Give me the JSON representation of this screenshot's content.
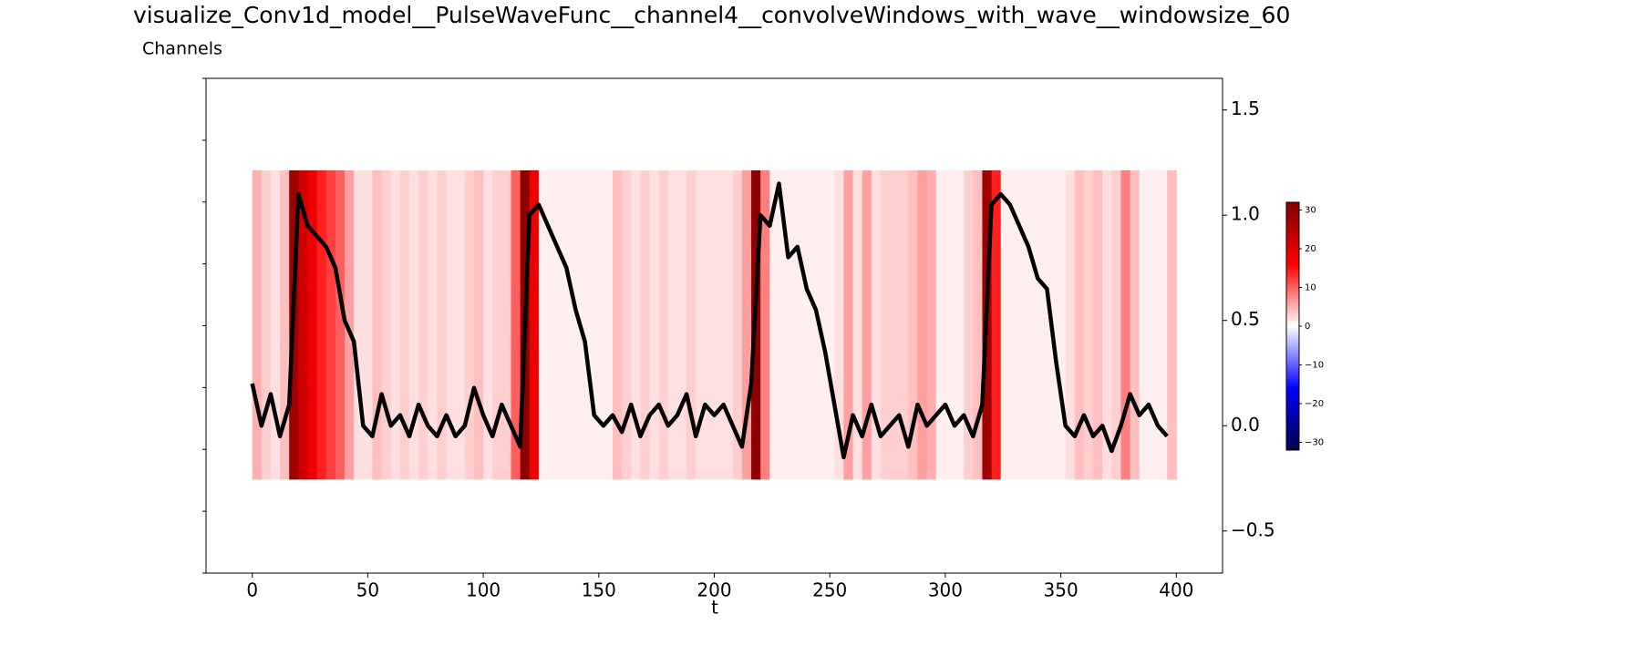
{
  "chart_data": {
    "type": "line",
    "title": "visualize_Conv1d_model__PulseWaveFunc__channel4__convolveWindows_with_wave__windowsize_60",
    "subtitle": "Channels",
    "x_label": "t",
    "xlim": [
      -20,
      420
    ],
    "xticks": [
      0,
      50,
      100,
      150,
      200,
      250,
      300,
      350,
      400
    ],
    "ylim": [
      -0.7,
      1.65
    ],
    "yticks": [
      {
        "value": -0.5,
        "label": "−0.5"
      },
      {
        "value": 0,
        "label": "0.0"
      },
      {
        "value": 0.5,
        "label": "0.5"
      },
      {
        "value": 1,
        "label": "1.0"
      },
      {
        "value": 1.5,
        "label": "1.5"
      }
    ],
    "x": [
      0,
      4,
      8,
      12,
      16,
      20,
      24,
      28,
      32,
      36,
      40,
      44,
      48,
      52,
      56,
      60,
      64,
      68,
      72,
      76,
      80,
      84,
      88,
      92,
      96,
      100,
      104,
      108,
      112,
      116,
      120,
      124,
      128,
      132,
      136,
      140,
      144,
      148,
      152,
      156,
      160,
      164,
      168,
      172,
      176,
      180,
      184,
      188,
      192,
      196,
      200,
      204,
      208,
      212,
      216,
      220,
      224,
      228,
      232,
      236,
      240,
      244,
      248,
      252,
      256,
      260,
      264,
      268,
      272,
      276,
      280,
      284,
      288,
      292,
      296,
      300,
      304,
      308,
      312,
      316,
      320,
      324,
      328,
      332,
      336,
      340,
      344,
      348,
      352,
      356,
      360,
      364,
      368,
      372,
      376,
      380,
      384,
      388,
      392,
      396
    ],
    "series": [
      {
        "color": "#000000",
        "values": [
          0.2,
          0.0,
          0.15,
          -0.05,
          0.1,
          1.1,
          0.95,
          0.9,
          0.85,
          0.75,
          0.5,
          0.4,
          0.0,
          -0.05,
          0.15,
          0.0,
          0.05,
          -0.05,
          0.1,
          0.0,
          -0.05,
          0.05,
          -0.05,
          0.0,
          0.18,
          0.05,
          -0.05,
          0.1,
          0.0,
          -0.1,
          1.0,
          1.05,
          0.95,
          0.85,
          0.75,
          0.55,
          0.4,
          0.05,
          0.0,
          0.05,
          -0.03,
          0.1,
          -0.05,
          0.05,
          0.1,
          0.0,
          0.05,
          0.15,
          -0.05,
          0.1,
          0.05,
          0.1,
          0.0,
          -0.1,
          0.2,
          1.0,
          0.95,
          1.15,
          0.8,
          0.85,
          0.65,
          0.55,
          0.35,
          0.1,
          -0.15,
          0.05,
          -0.05,
          0.1,
          -0.05,
          0.0,
          0.05,
          -0.1,
          0.1,
          0.0,
          0.05,
          0.1,
          0.0,
          0.05,
          -0.05,
          0.1,
          1.05,
          1.1,
          1.05,
          0.95,
          0.85,
          0.7,
          0.65,
          0.3,
          0.0,
          -0.05,
          0.05,
          -0.05,
          0.0,
          -0.12,
          0.0,
          0.15,
          0.05,
          0.1,
          0.0,
          -0.05
        ]
      }
    ],
    "heatmap": {
      "values": [
        5,
        3,
        2,
        4,
        28,
        22,
        18,
        14,
        12,
        10,
        6,
        2,
        2,
        4,
        3,
        2,
        3,
        2,
        3,
        2,
        3,
        2,
        2,
        3,
        4,
        2,
        3,
        3,
        10,
        30,
        18,
        1,
        1,
        1,
        1,
        1,
        1,
        1,
        1,
        4,
        3,
        2,
        3,
        2,
        3,
        2,
        2,
        3,
        2,
        2,
        2,
        2,
        3,
        6,
        30,
        8,
        1,
        1,
        1,
        1,
        1,
        1,
        1,
        2,
        6,
        2,
        6,
        2,
        3,
        3,
        3,
        4,
        6,
        5,
        1,
        1,
        1,
        3,
        4,
        28,
        14,
        1,
        1,
        1,
        1,
        1,
        1,
        1,
        2,
        4,
        3,
        4,
        2,
        3,
        8,
        4,
        1,
        1,
        1,
        4
      ]
    },
    "colorbar": {
      "lim": [
        -32,
        32
      ],
      "ticks": [
        {
          "value": -30,
          "label": "−30"
        },
        {
          "value": -20,
          "label": "−20"
        },
        {
          "value": -10,
          "label": "−10"
        },
        0,
        10,
        20,
        30
      ]
    }
  }
}
